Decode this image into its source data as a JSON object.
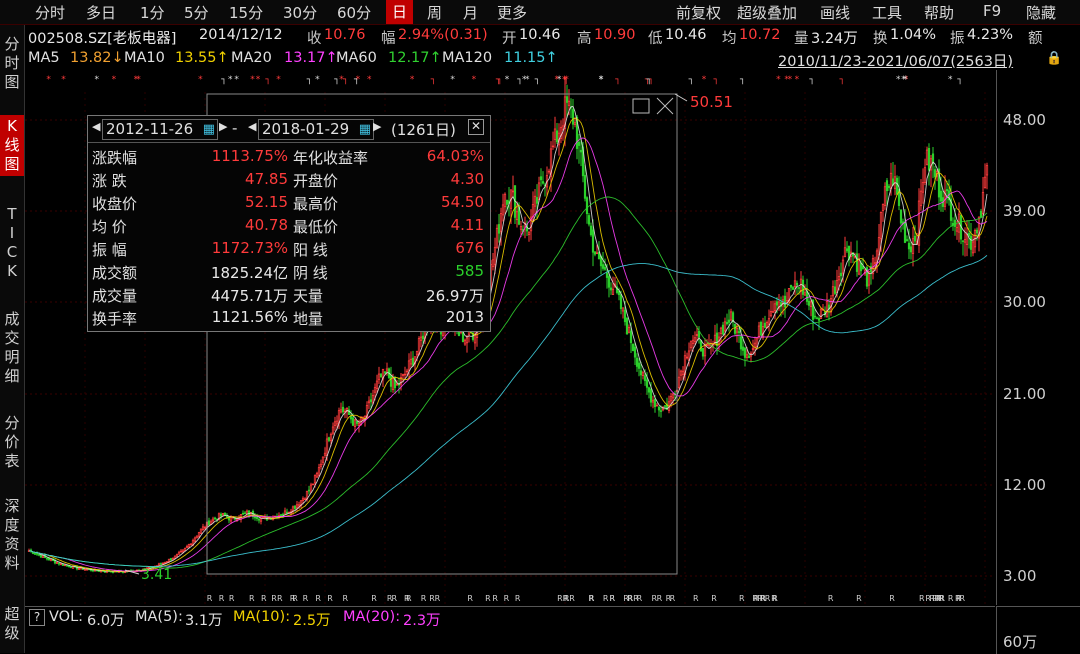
{
  "menu": {
    "items": [
      "分时",
      "多日",
      "1分",
      "5分",
      "15分",
      "30分",
      "60分",
      "日",
      "周",
      "月",
      "更多"
    ],
    "active_index": 7,
    "right_items": [
      "前复权",
      "超级叠加",
      "画线",
      "工具",
      "帮助",
      "F9",
      "隐藏"
    ]
  },
  "quote": {
    "code": "002508.SZ[老板电器]",
    "date": "2014/12/12",
    "close_label": "收",
    "close": "10.76",
    "change_label": "幅",
    "change": "2.94%(0.31)",
    "open_label": "开",
    "open": "10.46",
    "high_label": "高",
    "high": "10.90",
    "low_label": "低",
    "low": "10.46",
    "avg_label": "均",
    "avg": "10.72",
    "vol_label": "量",
    "vol": "3.24万",
    "turnover_label": "换",
    "turnover": "1.04%",
    "amp_label": "振",
    "amp": "4.23%",
    "amount_label": "额"
  },
  "ma_line": {
    "ma5_label": "MA5",
    "ma5": "13.82↓",
    "ma10_label": "MA10",
    "ma10": "13.55↑",
    "ma20_label": "MA20",
    "ma20": "13.17↑",
    "ma60_label": "MA60",
    "ma60": "12.17↑",
    "ma120_label": "MA120",
    "ma120": "11.15↑",
    "range": "2010/11/23-2021/06/07(2563日)"
  },
  "sidebar": {
    "items": [
      "分时图",
      "K线图",
      "TICK",
      "成交明细",
      "分价表",
      "深度资料",
      "超级"
    ],
    "active_index": 1
  },
  "stats_panel": {
    "start_date": "2012-11-26",
    "sep": "-",
    "end_date": "2018-01-29",
    "days": "(1261日)",
    "rows": [
      {
        "l1": "涨跌幅",
        "v1": "1113.75%",
        "c1": "red",
        "l2": "年化收益率",
        "v2": "64.03%",
        "c2": "red"
      },
      {
        "l1": "涨  跌",
        "v1": "47.85",
        "c1": "red",
        "l2": "开盘价",
        "v2": "4.30",
        "c2": "red"
      },
      {
        "l1": "收盘价",
        "v1": "52.15",
        "c1": "red",
        "l2": "最高价",
        "v2": "54.50",
        "c2": "red"
      },
      {
        "l1": "均  价",
        "v1": "40.78",
        "c1": "red",
        "l2": "最低价",
        "v2": "4.11",
        "c2": "red"
      },
      {
        "l1": "振  幅",
        "v1": "1172.73%",
        "c1": "red",
        "l2": "阳  线",
        "v2": "676",
        "c2": "red"
      },
      {
        "l1": "成交额",
        "v1": "1825.24亿",
        "c1": "white",
        "l2": "阴  线",
        "v2": "585",
        "c2": "green"
      },
      {
        "l1": "成交量",
        "v1": "4475.71万",
        "c1": "white",
        "l2": "天量",
        "v2": "26.97万",
        "c2": "white"
      },
      {
        "l1": "换手率",
        "v1": "1121.56%",
        "c1": "white",
        "l2": "地量",
        "v2": "2013",
        "c2": "white"
      }
    ]
  },
  "chart_data": {
    "type": "candlestick",
    "y_ticks": [
      "48.00",
      "39.00",
      "30.00",
      "21.00",
      "12.00",
      "3.00"
    ],
    "ylim": [
      3.0,
      48.0
    ],
    "annotations": {
      "max_label": "50.51",
      "min_label": "3.41"
    },
    "approx_close_series": [
      5.5,
      5.2,
      4.8,
      4.5,
      4.2,
      4.0,
      3.8,
      3.7,
      3.6,
      3.5,
      3.5,
      3.45,
      3.41,
      3.5,
      3.6,
      3.7,
      3.9,
      4.2,
      4.6,
      5.0,
      5.6,
      6.5,
      7.5,
      8.2,
      8.8,
      9.0,
      8.6,
      8.9,
      9.2,
      9.0,
      8.6,
      8.8,
      9.0,
      9.3,
      9.8,
      10.5,
      11.5,
      13.0,
      15.5,
      18.0,
      19.5,
      19.0,
      17.8,
      18.5,
      20.5,
      22.5,
      23.0,
      21.5,
      22.5,
      24.0,
      25.5,
      28.0,
      29.0,
      27.5,
      28.5,
      27.0,
      26.5,
      27.0,
      28.5,
      32.0,
      36.0,
      41.0,
      40.5,
      38.0,
      37.0,
      39.5,
      42.0,
      44.5,
      47.0,
      49.5,
      48.0,
      43.0,
      37.0,
      34.0,
      33.0,
      31.5,
      29.5,
      27.0,
      24.5,
      22.0,
      20.5,
      19.5,
      19.8,
      21.5,
      24.0,
      26.5,
      26.0,
      25.0,
      26.0,
      27.5,
      28.5,
      27.0,
      25.0,
      25.5,
      27.5,
      29.0,
      30.5,
      29.5,
      31.5,
      32.0,
      30.0,
      28.5,
      29.0,
      30.5,
      33.0,
      35.5,
      34.5,
      33.0,
      32.0,
      36.0,
      41.0,
      42.5,
      38.0,
      35.5,
      37.0,
      44.0,
      43.5,
      41.0,
      40.0,
      38.0,
      37.0,
      36.0,
      38.5,
      43.0
    ]
  },
  "volume": {
    "help": "?",
    "vol_label": "VOL:",
    "vol": "6.0万",
    "ma5_label": "MA(5):",
    "ma5": "3.1万",
    "ma10_label": "MA(10):",
    "ma10": "2.5万",
    "ma20_label": "MA(20):",
    "ma20": "2.3万",
    "axis_tick": "60万"
  },
  "colors": {
    "up": "#ff3b3b",
    "down": "#2bd02b",
    "ma5": "#e0e0e0",
    "ma10": "#f0d000",
    "ma20": "#ff40ff",
    "ma60": "#30d030",
    "ma120": "#40d0e0",
    "active": "#c00000"
  }
}
